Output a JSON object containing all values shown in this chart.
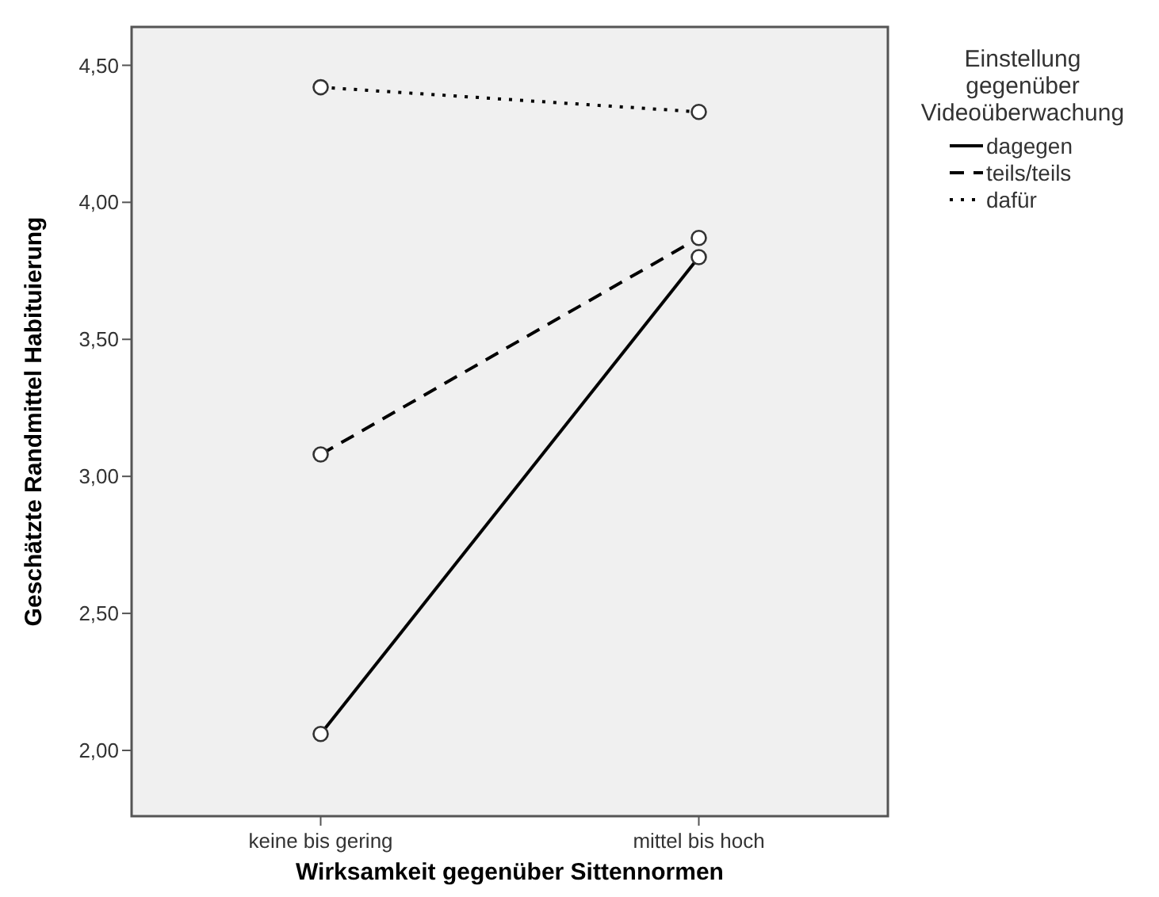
{
  "chart_data": {
    "type": "line",
    "xlabel": "Wirksamkeit gegenüber Sittennormen",
    "ylabel": "Geschätzte Randmittel Habituierung",
    "legend_title": "Einstellung gegenüber Videoüberwachung",
    "categories": [
      "keine bis gering",
      "mittel bis hoch"
    ],
    "series": [
      {
        "name": "dagegen",
        "color": "#000000",
        "line_style": "solid",
        "values": [
          2.06,
          3.8
        ]
      },
      {
        "name": "teils/teils",
        "color": "#000000",
        "line_style": "dashed",
        "values": [
          3.08,
          3.87
        ]
      },
      {
        "name": "dafür",
        "color": "#000000",
        "line_style": "dotted",
        "values": [
          4.42,
          4.33
        ]
      }
    ],
    "ylim": [
      1.76,
      4.64
    ],
    "yticks": [
      {
        "value": 2,
        "label": "2,00"
      },
      {
        "value": 2.5,
        "label": "2,50"
      },
      {
        "value": 3,
        "label": "3,00"
      },
      {
        "value": 3.5,
        "label": "3,50"
      },
      {
        "value": 4,
        "label": "4,00"
      },
      {
        "value": 4.5,
        "label": "4,50"
      }
    ],
    "grid": false,
    "legend": "right",
    "marker": "circle"
  }
}
